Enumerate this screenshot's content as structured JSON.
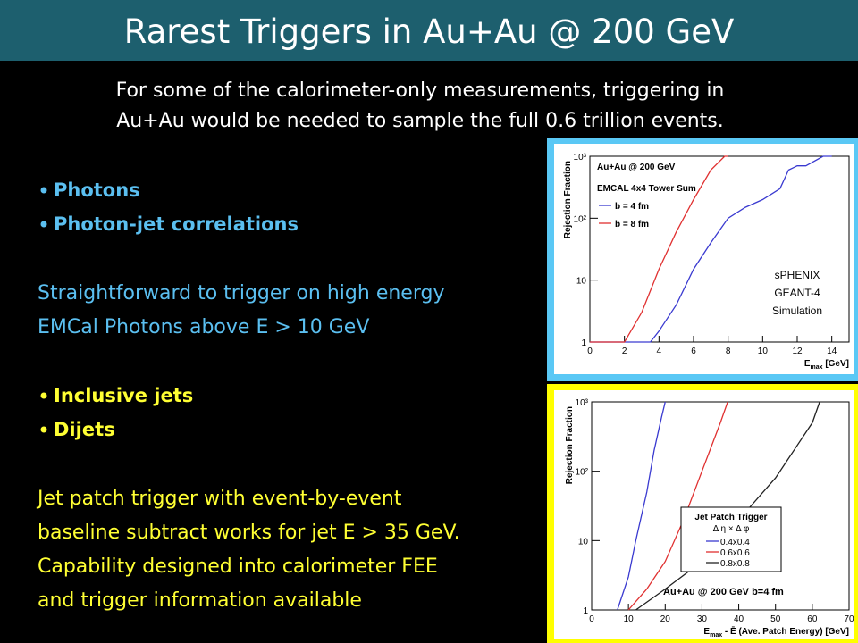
{
  "header": {
    "title": "Rarest Triggers in Au+Au @ 200 GeV"
  },
  "intro": [
    "For some of the calorimeter-only measurements, triggering in",
    "Au+Au would be needed to sample the full 0.6 trillion events."
  ],
  "photons": {
    "bullets": [
      "Photons",
      "Photon-jet correlations"
    ],
    "text": [
      "Straightforward to trigger on high energy",
      "EMCal Photons above E > 10 GeV"
    ]
  },
  "jets": {
    "bullets": [
      "Inclusive jets",
      "Dijets"
    ],
    "text": [
      "Jet patch trigger with event-by-event",
      "baseline subtract works for jet E > 35 GeV.",
      "Capability designed into calorimeter FEE",
      "and trigger information available"
    ]
  },
  "plots": [
    {
      "type": "line",
      "log_y": true,
      "xlim": [
        0,
        15
      ],
      "ylim": [
        1,
        1000
      ],
      "xticks": [
        0,
        2,
        4,
        6,
        8,
        10,
        12,
        14
      ],
      "yticks": [
        1,
        10,
        {
          "value": 100,
          "label": "10²"
        },
        {
          "value": 1000,
          "label": "10³"
        }
      ],
      "y_label": "Rejection Fraction",
      "x_label": [
        "E",
        "max",
        " [GeV]"
      ],
      "annotations": [
        "Au+Au @ 200 GeV",
        "EMCAL 4x4 Tower Sum"
      ],
      "note": [
        "sPHENIX",
        "GEANT-4",
        "Simulation"
      ],
      "series": [
        {
          "name": "b = 4 fm",
          "color": "#3a3ad0",
          "x": [
            0,
            3.5,
            4,
            5,
            6,
            7,
            8,
            9,
            10,
            11,
            11.5,
            12,
            12.5,
            13.5,
            14
          ],
          "values": [
            1,
            1,
            1.5,
            4,
            15,
            40,
            100,
            150,
            200,
            300,
            600,
            700,
            700,
            1000,
            1000
          ]
        },
        {
          "name": "b = 8 fm",
          "color": "#e03030",
          "x": [
            0,
            2,
            3,
            4,
            5,
            6,
            7,
            7.8,
            8
          ],
          "values": [
            1,
            1,
            3,
            15,
            60,
            200,
            600,
            1000,
            1000
          ]
        }
      ]
    },
    {
      "type": "line",
      "log_y": true,
      "xlim": [
        0,
        70
      ],
      "ylim": [
        1,
        1000
      ],
      "xticks": [
        0,
        10,
        20,
        30,
        40,
        50,
        60,
        70
      ],
      "yticks": [
        1,
        10,
        {
          "value": 100,
          "label": "10²"
        },
        {
          "value": 1000,
          "label": "10³"
        }
      ],
      "y_label": "Rejection Fraction",
      "x_label": [
        "E",
        "max",
        " - Ē (Ave. Patch Energy) [GeV]"
      ],
      "annotations": [
        "Au+Au @ 200 GeV b=4 fm"
      ],
      "legend_title": [
        "Jet Patch Trigger",
        "Δ η × Δ φ"
      ],
      "series": [
        {
          "name": "0.4x0.4",
          "color": "#3a3ad0",
          "x": [
            7,
            10,
            12,
            15,
            17,
            19,
            20
          ],
          "values": [
            1,
            3,
            10,
            50,
            200,
            600,
            1000
          ]
        },
        {
          "name": "0.6x0.6",
          "color": "#e03030",
          "x": [
            10,
            15,
            20,
            25,
            30,
            35,
            37
          ],
          "values": [
            1,
            2,
            5,
            20,
            100,
            500,
            1000
          ]
        },
        {
          "name": "0.8x0.8",
          "color": "#222222",
          "x": [
            12,
            20,
            30,
            40,
            50,
            55,
            60,
            62
          ],
          "values": [
            1,
            2,
            5,
            20,
            80,
            200,
            500,
            1000
          ]
        }
      ]
    }
  ]
}
